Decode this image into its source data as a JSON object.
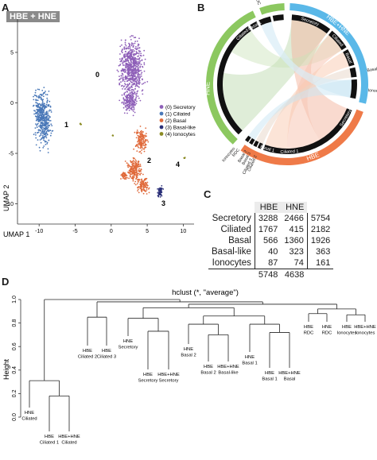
{
  "panels": {
    "a": "A",
    "b": "B",
    "c": "C",
    "d": "D"
  },
  "umap": {
    "title": "HBE + HNE",
    "xlabel": "UMAP 1",
    "ylabel": "UMAP 2",
    "xticks": [
      "-10",
      "-5",
      "0",
      "5",
      "10"
    ],
    "yticks": [
      "5",
      "0",
      "-5",
      "-10"
    ],
    "cluster_labels": [
      "0",
      "1",
      "2",
      "3",
      "4"
    ],
    "legend": [
      "(0) Secretory",
      "(1) Ciliated",
      "(2) Basal",
      "(3) Basal-like",
      "(4) Ionocytes"
    ],
    "colors": [
      "#8e5fb8",
      "#4a78b8",
      "#e06a3b",
      "#2a2f78",
      "#8a8a22"
    ]
  },
  "chord": {
    "groups": [
      "Secretory",
      "Ciliated",
      "Basal",
      "Basal-like",
      "Ionocytes",
      "Secretory",
      "Basal 1",
      "Ciliated 1",
      "Basal 2",
      "Basal 3",
      "Ciliated 2",
      "Ciliated 3",
      "RDC",
      "Ionocytes",
      "RDC",
      "Basal 1",
      "Ciliated"
    ],
    "outer": [
      "HBE+HNE",
      "HNE",
      "HBE"
    ],
    "outer_colors": {
      "hbehne": "#5ab8e8",
      "hne": "#8cc860",
      "hbe": "#ef7a48"
    }
  },
  "chart_data": [
    {
      "type": "table",
      "title": "",
      "columns": [
        "",
        "HBE",
        "HNE",
        ""
      ],
      "rows": [
        [
          "Secretory",
          "3288",
          "2466",
          "5754"
        ],
        [
          "Ciliated",
          "1767",
          "415",
          "2182"
        ],
        [
          "Basal",
          "566",
          "1360",
          "1926"
        ],
        [
          "Basal-like",
          "40",
          "323",
          "363"
        ],
        [
          "Ionocytes",
          "87",
          "74",
          "161"
        ]
      ],
      "totals": [
        "5748",
        "4638"
      ]
    },
    {
      "type": "dendrogram",
      "title": "hclust (*, \"average\")",
      "ylabel": "Height",
      "ylim": [
        0,
        1.0
      ],
      "yticks": [
        "0.0",
        "0.2",
        "0.4",
        "0.6",
        "0.8",
        "1.0"
      ],
      "leaves": [
        [
          "HNE",
          "Ciliated"
        ],
        [
          "HBE",
          "Ciliated 1"
        ],
        [
          "HBE+HNE",
          "Ciliated"
        ],
        [
          "HBE",
          "Ciliated 2"
        ],
        [
          "HBE",
          "Ciliated 3"
        ],
        [
          "HNE",
          "Secretory"
        ],
        [
          "HBE",
          "Secretory"
        ],
        [
          "HBE+HNE",
          "Secretory"
        ],
        [
          "HNE",
          "Basal 2"
        ],
        [
          "HBE",
          "Basal 2"
        ],
        [
          "HBE+HNE",
          "Basal-like"
        ],
        [
          "HNE",
          "Basal 1"
        ],
        [
          "HBE",
          "Basal 1"
        ],
        [
          "HBE+HNE",
          "Basal"
        ],
        [
          "HBE",
          "RDC"
        ],
        [
          "HNE",
          "RDC"
        ],
        [
          "HBE",
          "Ionocytes"
        ],
        [
          "HBE+HNE",
          "Ionocytes"
        ]
      ],
      "merges": [
        {
          "left": 1,
          "right": 2,
          "height": 0.18
        },
        {
          "left": 0,
          "right": "m0",
          "height": 0.31
        },
        {
          "left": 3,
          "right": 4,
          "height": 0.85
        },
        {
          "left": 6,
          "right": 7,
          "height": 0.73
        },
        {
          "left": 5,
          "right": "m3",
          "height": 0.84
        },
        {
          "left": 9,
          "right": 10,
          "height": 0.7
        },
        {
          "left": 8,
          "right": "m5",
          "height": 0.79
        },
        {
          "left": 12,
          "right": 13,
          "height": 0.72
        },
        {
          "left": 11,
          "right": "m7",
          "height": 0.79
        },
        {
          "left": "m6",
          "right": "m8",
          "height": 0.86
        },
        {
          "left": "m4",
          "right": "m9",
          "height": 0.93
        },
        {
          "left": 14,
          "right": 15,
          "height": 0.88
        },
        {
          "left": 16,
          "right": 17,
          "height": 0.87
        },
        {
          "left": "m11",
          "right": "m12",
          "height": 0.92
        },
        {
          "left": "m10",
          "right": "m13",
          "height": 0.96
        },
        {
          "left": "m2",
          "right": "m14",
          "height": 0.98
        },
        {
          "left": "m1",
          "right": "m15",
          "height": 1.0
        }
      ]
    }
  ]
}
